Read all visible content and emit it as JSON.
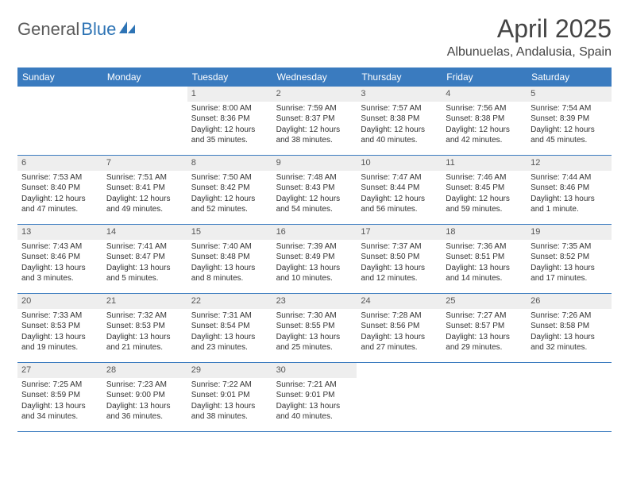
{
  "brand": {
    "part1": "General",
    "part2": "Blue"
  },
  "title": "April 2025",
  "location": "Albunuelas, Andalusia, Spain",
  "colors": {
    "header_bg": "#3a7bbf",
    "header_fg": "#ffffff",
    "daynum_bg": "#eeeeee",
    "rule": "#3a7bbf",
    "text": "#333333"
  },
  "weekdays": [
    "Sunday",
    "Monday",
    "Tuesday",
    "Wednesday",
    "Thursday",
    "Friday",
    "Saturday"
  ],
  "weeks": [
    [
      null,
      null,
      {
        "n": "1",
        "sr": "Sunrise: 8:00 AM",
        "ss": "Sunset: 8:36 PM",
        "dl": "Daylight: 12 hours and 35 minutes."
      },
      {
        "n": "2",
        "sr": "Sunrise: 7:59 AM",
        "ss": "Sunset: 8:37 PM",
        "dl": "Daylight: 12 hours and 38 minutes."
      },
      {
        "n": "3",
        "sr": "Sunrise: 7:57 AM",
        "ss": "Sunset: 8:38 PM",
        "dl": "Daylight: 12 hours and 40 minutes."
      },
      {
        "n": "4",
        "sr": "Sunrise: 7:56 AM",
        "ss": "Sunset: 8:38 PM",
        "dl": "Daylight: 12 hours and 42 minutes."
      },
      {
        "n": "5",
        "sr": "Sunrise: 7:54 AM",
        "ss": "Sunset: 8:39 PM",
        "dl": "Daylight: 12 hours and 45 minutes."
      }
    ],
    [
      {
        "n": "6",
        "sr": "Sunrise: 7:53 AM",
        "ss": "Sunset: 8:40 PM",
        "dl": "Daylight: 12 hours and 47 minutes."
      },
      {
        "n": "7",
        "sr": "Sunrise: 7:51 AM",
        "ss": "Sunset: 8:41 PM",
        "dl": "Daylight: 12 hours and 49 minutes."
      },
      {
        "n": "8",
        "sr": "Sunrise: 7:50 AM",
        "ss": "Sunset: 8:42 PM",
        "dl": "Daylight: 12 hours and 52 minutes."
      },
      {
        "n": "9",
        "sr": "Sunrise: 7:48 AM",
        "ss": "Sunset: 8:43 PM",
        "dl": "Daylight: 12 hours and 54 minutes."
      },
      {
        "n": "10",
        "sr": "Sunrise: 7:47 AM",
        "ss": "Sunset: 8:44 PM",
        "dl": "Daylight: 12 hours and 56 minutes."
      },
      {
        "n": "11",
        "sr": "Sunrise: 7:46 AM",
        "ss": "Sunset: 8:45 PM",
        "dl": "Daylight: 12 hours and 59 minutes."
      },
      {
        "n": "12",
        "sr": "Sunrise: 7:44 AM",
        "ss": "Sunset: 8:46 PM",
        "dl": "Daylight: 13 hours and 1 minute."
      }
    ],
    [
      {
        "n": "13",
        "sr": "Sunrise: 7:43 AM",
        "ss": "Sunset: 8:46 PM",
        "dl": "Daylight: 13 hours and 3 minutes."
      },
      {
        "n": "14",
        "sr": "Sunrise: 7:41 AM",
        "ss": "Sunset: 8:47 PM",
        "dl": "Daylight: 13 hours and 5 minutes."
      },
      {
        "n": "15",
        "sr": "Sunrise: 7:40 AM",
        "ss": "Sunset: 8:48 PM",
        "dl": "Daylight: 13 hours and 8 minutes."
      },
      {
        "n": "16",
        "sr": "Sunrise: 7:39 AM",
        "ss": "Sunset: 8:49 PM",
        "dl": "Daylight: 13 hours and 10 minutes."
      },
      {
        "n": "17",
        "sr": "Sunrise: 7:37 AM",
        "ss": "Sunset: 8:50 PM",
        "dl": "Daylight: 13 hours and 12 minutes."
      },
      {
        "n": "18",
        "sr": "Sunrise: 7:36 AM",
        "ss": "Sunset: 8:51 PM",
        "dl": "Daylight: 13 hours and 14 minutes."
      },
      {
        "n": "19",
        "sr": "Sunrise: 7:35 AM",
        "ss": "Sunset: 8:52 PM",
        "dl": "Daylight: 13 hours and 17 minutes."
      }
    ],
    [
      {
        "n": "20",
        "sr": "Sunrise: 7:33 AM",
        "ss": "Sunset: 8:53 PM",
        "dl": "Daylight: 13 hours and 19 minutes."
      },
      {
        "n": "21",
        "sr": "Sunrise: 7:32 AM",
        "ss": "Sunset: 8:53 PM",
        "dl": "Daylight: 13 hours and 21 minutes."
      },
      {
        "n": "22",
        "sr": "Sunrise: 7:31 AM",
        "ss": "Sunset: 8:54 PM",
        "dl": "Daylight: 13 hours and 23 minutes."
      },
      {
        "n": "23",
        "sr": "Sunrise: 7:30 AM",
        "ss": "Sunset: 8:55 PM",
        "dl": "Daylight: 13 hours and 25 minutes."
      },
      {
        "n": "24",
        "sr": "Sunrise: 7:28 AM",
        "ss": "Sunset: 8:56 PM",
        "dl": "Daylight: 13 hours and 27 minutes."
      },
      {
        "n": "25",
        "sr": "Sunrise: 7:27 AM",
        "ss": "Sunset: 8:57 PM",
        "dl": "Daylight: 13 hours and 29 minutes."
      },
      {
        "n": "26",
        "sr": "Sunrise: 7:26 AM",
        "ss": "Sunset: 8:58 PM",
        "dl": "Daylight: 13 hours and 32 minutes."
      }
    ],
    [
      {
        "n": "27",
        "sr": "Sunrise: 7:25 AM",
        "ss": "Sunset: 8:59 PM",
        "dl": "Daylight: 13 hours and 34 minutes."
      },
      {
        "n": "28",
        "sr": "Sunrise: 7:23 AM",
        "ss": "Sunset: 9:00 PM",
        "dl": "Daylight: 13 hours and 36 minutes."
      },
      {
        "n": "29",
        "sr": "Sunrise: 7:22 AM",
        "ss": "Sunset: 9:01 PM",
        "dl": "Daylight: 13 hours and 38 minutes."
      },
      {
        "n": "30",
        "sr": "Sunrise: 7:21 AM",
        "ss": "Sunset: 9:01 PM",
        "dl": "Daylight: 13 hours and 40 minutes."
      },
      null,
      null,
      null
    ]
  ]
}
